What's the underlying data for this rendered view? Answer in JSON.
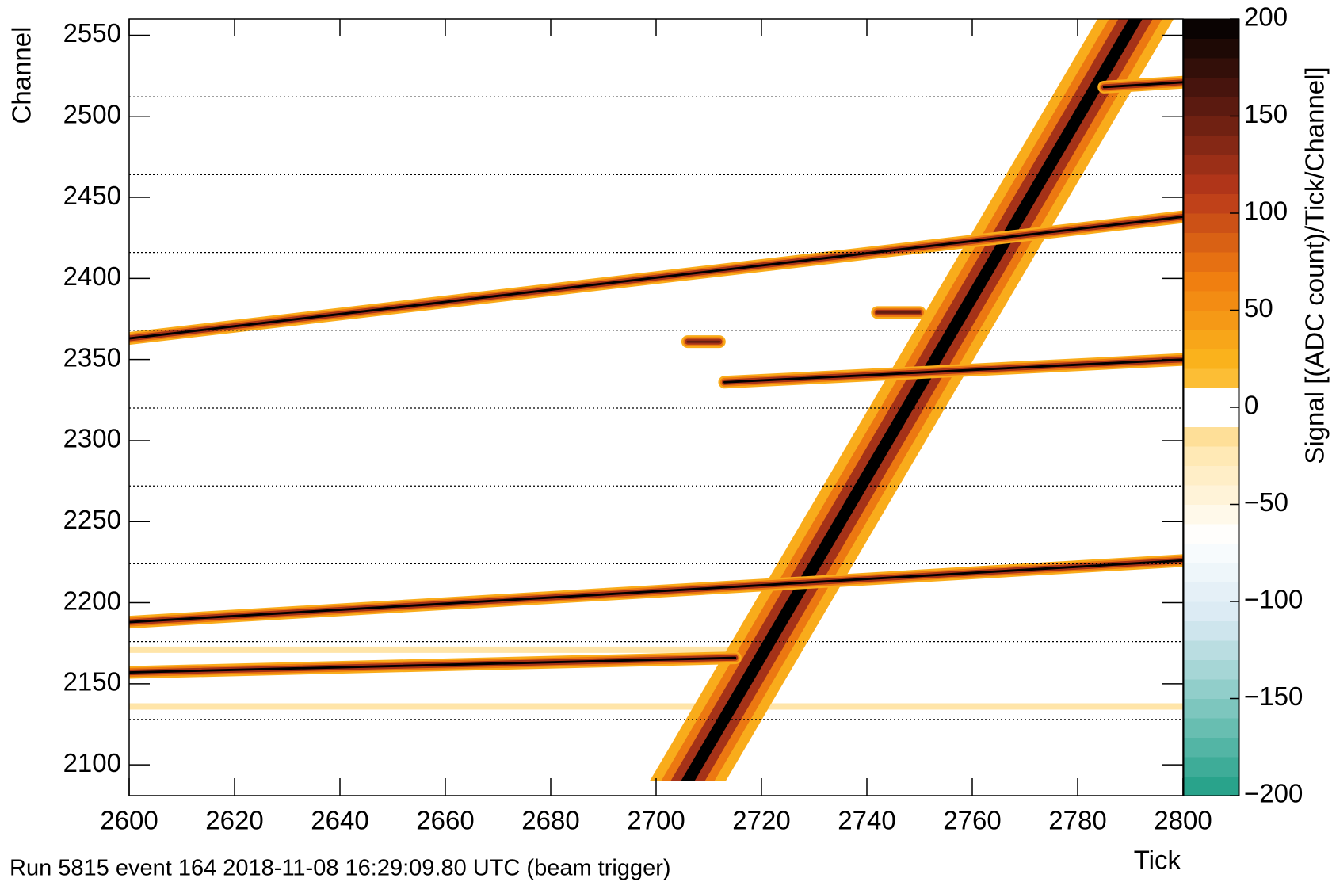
{
  "chart_data": {
    "type": "heatmap",
    "x_label": "Tick",
    "y_label": "Channel",
    "z_label": "Signal [(ADC count)/Tick/Channel]",
    "footer": "Run 5815 event 164 2018-11-08 16:29:09.80 UTC (beam trigger)",
    "xlim": [
      2600,
      2800
    ],
    "xticks": [
      2600,
      2620,
      2640,
      2660,
      2680,
      2700,
      2720,
      2740,
      2760,
      2780,
      2800
    ],
    "ylim": [
      2081,
      2560
    ],
    "yticks": [
      2100,
      2150,
      2200,
      2250,
      2300,
      2350,
      2400,
      2450,
      2500,
      2550
    ],
    "zlim": [
      -200,
      200
    ],
    "zticks": [
      {
        "value": -200,
        "label": "−200"
      },
      {
        "value": -150,
        "label": "−150"
      },
      {
        "value": -100,
        "label": "−100"
      },
      {
        "value": -50,
        "label": "−50"
      },
      0,
      50,
      100,
      150,
      200
    ],
    "colors": [
      "#1f9e85",
      "#7cc6bd",
      "#d6e8f2",
      "#ffffff",
      "#ffe7b0",
      "#fbb61d",
      "#f07d10",
      "#b8381a",
      "#5a1a10",
      "#000000"
    ],
    "boundaries": [
      2128,
      2176,
      2224,
      2272,
      2320,
      2368,
      2416,
      2464,
      2512
    ],
    "tracks": [
      {
        "x": [
          2706,
          2791
        ],
        "y": [
          2090,
          2560
        ],
        "value": 200
      },
      {
        "x": [
          2600,
          2800
        ],
        "y": [
          2363,
          2438
        ],
        "value": 200
      },
      {
        "x": [
          2600,
          2800
        ],
        "y": [
          2188,
          2226
        ],
        "value": 200
      },
      {
        "x": [
          2600,
          2715
        ],
        "y": [
          2157,
          2166
        ],
        "value": 200
      },
      {
        "x": [
          2713,
          2800
        ],
        "y": [
          2336,
          2350
        ],
        "value": 200
      },
      {
        "x": [
          2785,
          2800
        ],
        "y": [
          2518,
          2521
        ],
        "value": 200
      },
      {
        "x": [
          2706,
          2712
        ],
        "y": [
          2361,
          2361
        ],
        "value": 150
      },
      {
        "x": [
          2742,
          2750
        ],
        "y": [
          2379,
          2379
        ],
        "value": 150
      },
      {
        "x": [
          2600,
          2800
        ],
        "y": [
          2136,
          2136
        ],
        "value": -20
      },
      {
        "x": [
          2600,
          2715
        ],
        "y": [
          2171,
          2171
        ],
        "value": -20
      }
    ]
  }
}
